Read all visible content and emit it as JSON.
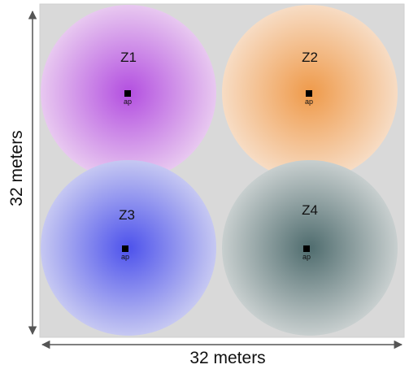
{
  "floor": {
    "background": "#d9d9d9"
  },
  "zones": [
    {
      "label": "Z1",
      "ap_label": "ap",
      "center_color": "#b34fe0",
      "edge_color": "#e8c8f0"
    },
    {
      "label": "Z2",
      "ap_label": "ap",
      "center_color": "#ef9a4a",
      "edge_color": "#f7dcc4"
    },
    {
      "label": "Z3",
      "ap_label": "ap",
      "center_color": "#4d52ec",
      "edge_color": "#c6c8f2"
    },
    {
      "label": "Z4",
      "ap_label": "ap",
      "center_color": "#4f6c6e",
      "edge_color": "#c8cfcf"
    }
  ],
  "dimensions": {
    "width_label": "32 meters",
    "height_label": "32 meters"
  }
}
